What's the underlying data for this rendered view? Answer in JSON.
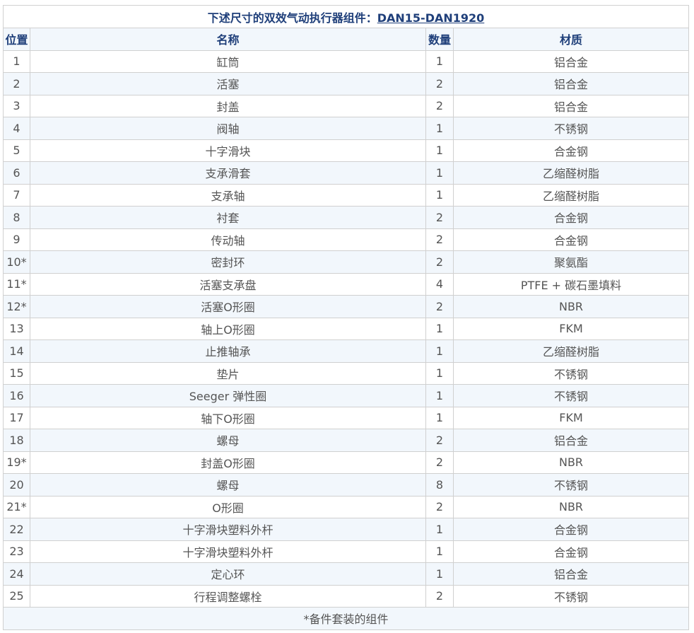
{
  "title": {
    "prefix": "下述尺寸的双效气动执行器组件：",
    "link": "DAN15-DAN1920"
  },
  "headers": [
    "位置",
    "名称",
    "数量",
    "材质"
  ],
  "rows": [
    [
      "1",
      "缸筒",
      "1",
      "铝合金"
    ],
    [
      "2",
      "活塞",
      "2",
      "铝合金"
    ],
    [
      "3",
      "封盖",
      "2",
      "铝合金"
    ],
    [
      "4",
      "阀轴",
      "1",
      "不锈钢"
    ],
    [
      "5",
      "十字滑块",
      "1",
      "合金钢"
    ],
    [
      "6",
      "支承滑套",
      "1",
      "乙缩醛树脂"
    ],
    [
      "7",
      "支承轴",
      "1",
      "乙缩醛树脂"
    ],
    [
      "8",
      "衬套",
      "2",
      "合金钢"
    ],
    [
      "9",
      "传动轴",
      "2",
      "合金钢"
    ],
    [
      "10*",
      "密封环",
      "2",
      "聚氨酯"
    ],
    [
      "11*",
      "活塞支承盘",
      "4",
      "PTFE + 碳石墨填料"
    ],
    [
      "12*",
      "活塞O形圈",
      "2",
      "NBR"
    ],
    [
      "13",
      "轴上O形圈",
      "1",
      "FKM"
    ],
    [
      "14",
      "止推轴承",
      "1",
      "乙缩醛树脂"
    ],
    [
      "15",
      "垫片",
      "1",
      "不锈钢"
    ],
    [
      "16",
      "Seeger 弹性圈",
      "1",
      "不锈钢"
    ],
    [
      "17",
      "轴下O形圈",
      "1",
      "FKM"
    ],
    [
      "18",
      "螺母",
      "2",
      "铝合金"
    ],
    [
      "19*",
      "封盖O形圈",
      "2",
      "NBR"
    ],
    [
      "20",
      "螺母",
      "8",
      "不锈钢"
    ],
    [
      "21*",
      "O形圈",
      "2",
      "NBR"
    ],
    [
      "22",
      "十字滑块塑料外杆",
      "1",
      "合金钢"
    ],
    [
      "23",
      "十字滑块塑料外杆",
      "1",
      "合金钢"
    ],
    [
      "24",
      "定心环",
      "1",
      "铝合金"
    ],
    [
      "25",
      "行程调整螺栓",
      "2",
      "不锈钢"
    ]
  ],
  "footnote": "*备件套装的组件",
  "colors": {
    "header_text": "#1f3f7a",
    "stripe": "#f2f7fc",
    "border": "#d0d0d0"
  }
}
